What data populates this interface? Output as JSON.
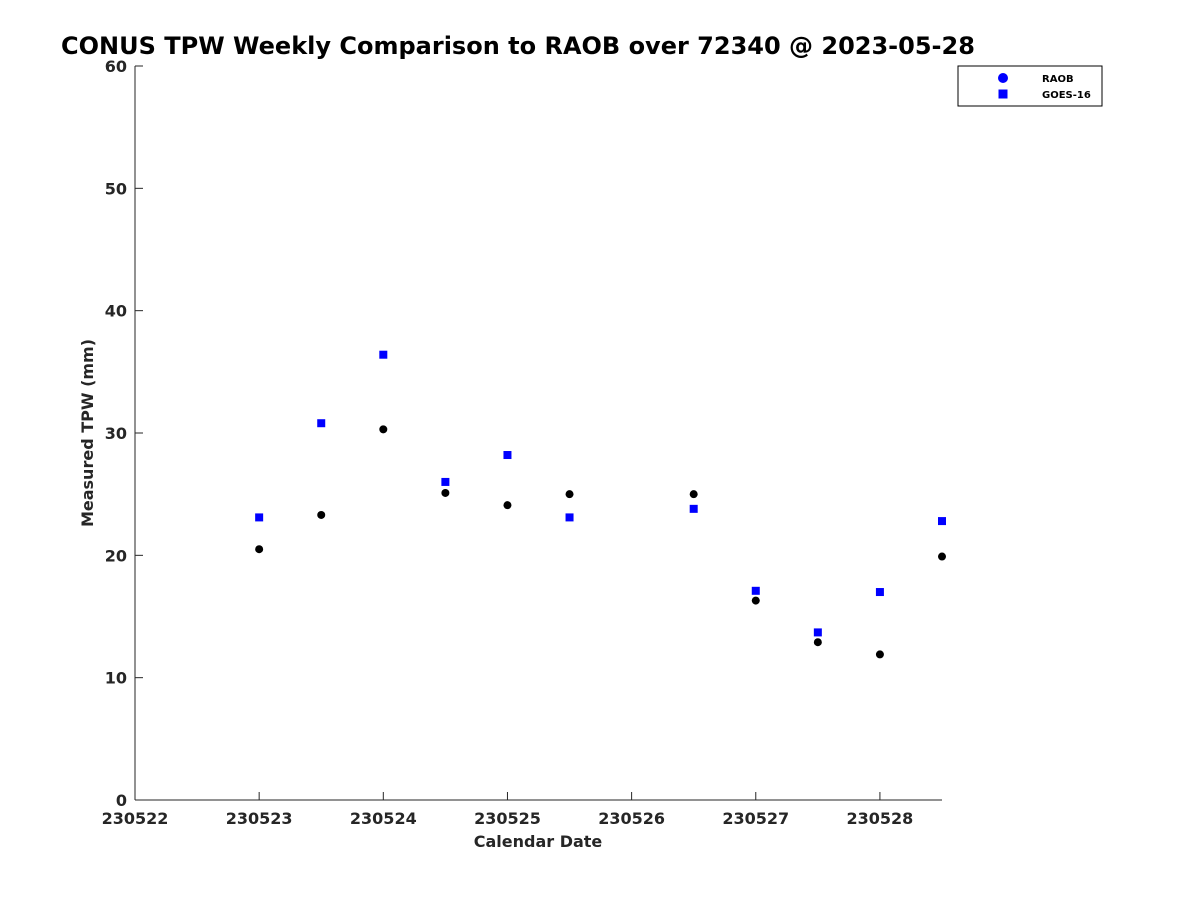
{
  "chart_data": {
    "type": "scatter",
    "title": "CONUS TPW Weekly Comparison to RAOB over 72340 @ 2023-05-28",
    "xlabel": "Calendar Date",
    "ylabel": "Measured TPW (mm)",
    "xlim": [
      230522,
      230528.5
    ],
    "ylim": [
      0,
      60
    ],
    "x_ticks": [
      230522,
      230523,
      230524,
      230525,
      230526,
      230527,
      230528
    ],
    "x_tick_labels": [
      "230522",
      "230523",
      "230524",
      "230525",
      "230526",
      "230527",
      "230528"
    ],
    "y_ticks": [
      0,
      10,
      20,
      30,
      40,
      50,
      60
    ],
    "y_tick_labels": [
      "0",
      "10",
      "20",
      "30",
      "40",
      "50",
      "60"
    ],
    "grid": false,
    "legend_position": "top-right",
    "series": [
      {
        "name": "RAOB",
        "marker": "circle",
        "color": "#000000",
        "legend_color": "#0000ff",
        "x": [
          230523,
          230523.5,
          230524,
          230524.5,
          230525,
          230525.5,
          230526.5,
          230527,
          230527.5,
          230528,
          230528.5
        ],
        "y": [
          20.5,
          23.3,
          30.3,
          25.1,
          24.1,
          25.0,
          25.0,
          16.3,
          12.9,
          11.9,
          19.9
        ]
      },
      {
        "name": "GOES-16",
        "marker": "square",
        "color": "#0000ff",
        "legend_color": "#0000ff",
        "x": [
          230523,
          230523.5,
          230524,
          230524.5,
          230525,
          230525.5,
          230526.5,
          230527,
          230527.5,
          230528,
          230528.5
        ],
        "y": [
          23.1,
          30.8,
          36.4,
          26.0,
          28.2,
          23.1,
          23.8,
          17.1,
          13.7,
          17.0,
          22.8
        ]
      }
    ]
  }
}
